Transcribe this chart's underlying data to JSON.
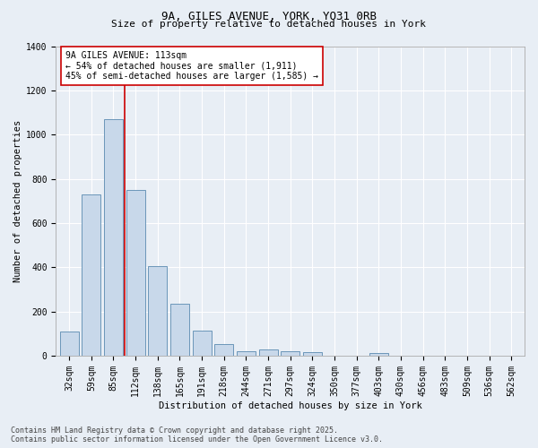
{
  "title_line1": "9A, GILES AVENUE, YORK, YO31 0RB",
  "title_line2": "Size of property relative to detached houses in York",
  "xlabel": "Distribution of detached houses by size in York",
  "ylabel": "Number of detached properties",
  "categories": [
    "32sqm",
    "59sqm",
    "85sqm",
    "112sqm",
    "138sqm",
    "165sqm",
    "191sqm",
    "218sqm",
    "244sqm",
    "271sqm",
    "297sqm",
    "324sqm",
    "350sqm",
    "377sqm",
    "403sqm",
    "430sqm",
    "456sqm",
    "483sqm",
    "509sqm",
    "536sqm",
    "562sqm"
  ],
  "values": [
    110,
    730,
    1070,
    750,
    405,
    235,
    115,
    52,
    22,
    28,
    22,
    18,
    0,
    0,
    12,
    0,
    0,
    0,
    0,
    0,
    0
  ],
  "bar_color": "#c8d8ea",
  "bar_edge_color": "#5a8ab0",
  "vline_color": "#cc0000",
  "annotation_title": "9A GILES AVENUE: 113sqm",
  "annotation_line2": "← 54% of detached houses are smaller (1,911)",
  "annotation_line3": "45% of semi-detached houses are larger (1,585) →",
  "annotation_box_edgecolor": "#cc0000",
  "ylim": [
    0,
    1400
  ],
  "yticks": [
    0,
    200,
    400,
    600,
    800,
    1000,
    1200,
    1400
  ],
  "footer_line1": "Contains HM Land Registry data © Crown copyright and database right 2025.",
  "footer_line2": "Contains public sector information licensed under the Open Government Licence v3.0.",
  "bg_color": "#e8eef5",
  "plot_bg_color": "#e8eef5",
  "grid_color": "#ffffff",
  "title_fontsize": 9,
  "subtitle_fontsize": 8,
  "axis_label_fontsize": 7.5,
  "tick_fontsize": 7,
  "annotation_fontsize": 7,
  "footer_fontsize": 6
}
